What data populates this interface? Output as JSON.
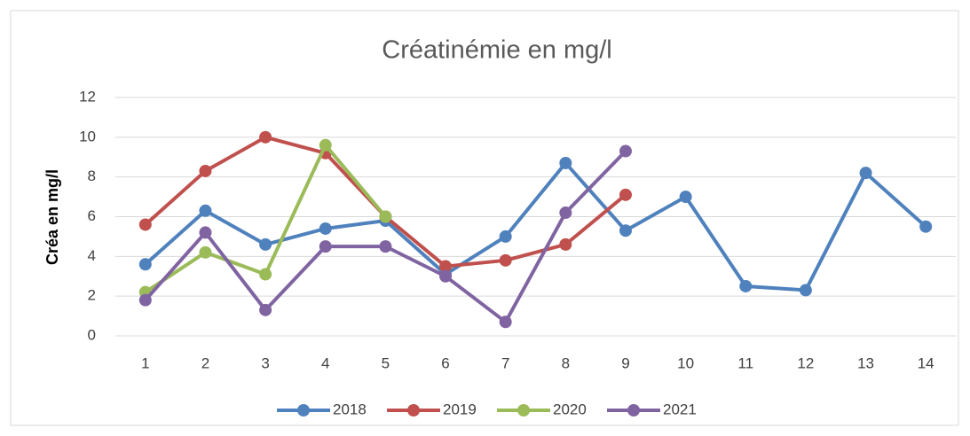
{
  "chart_data": {
    "type": "line",
    "title": "Créatinémie en mg/l",
    "y_label": "Créa en mg/l",
    "categories": [
      "1",
      "2",
      "3",
      "4",
      "5",
      "6",
      "7",
      "8",
      "9",
      "10",
      "11",
      "12",
      "13",
      "14"
    ],
    "series": [
      {
        "name": "2018",
        "color": "#4f81bd",
        "values": [
          3.6,
          6.3,
          4.6,
          5.4,
          5.8,
          3.1,
          5.0,
          8.7,
          5.3,
          7.0,
          2.5,
          2.3,
          8.2,
          5.5
        ]
      },
      {
        "name": "2019",
        "color": "#c0504d",
        "values": [
          5.6,
          8.3,
          10.0,
          9.2,
          6.0,
          3.5,
          3.8,
          4.6,
          7.1,
          null,
          null,
          null,
          null,
          null
        ]
      },
      {
        "name": "2020",
        "color": "#9bbb59",
        "values": [
          2.2,
          4.2,
          3.1,
          9.6,
          6.0,
          null,
          null,
          null,
          null,
          null,
          null,
          null,
          null,
          null
        ]
      },
      {
        "name": "2021",
        "color": "#8064a2",
        "values": [
          1.8,
          5.2,
          1.3,
          4.5,
          4.5,
          3.0,
          0.7,
          6.2,
          9.3,
          null,
          null,
          null,
          null,
          null
        ]
      }
    ],
    "ylim": [
      0,
      12
    ],
    "yticks": [
      0,
      2,
      4,
      6,
      8,
      10,
      12
    ],
    "grid": true,
    "legend": "bottom"
  }
}
